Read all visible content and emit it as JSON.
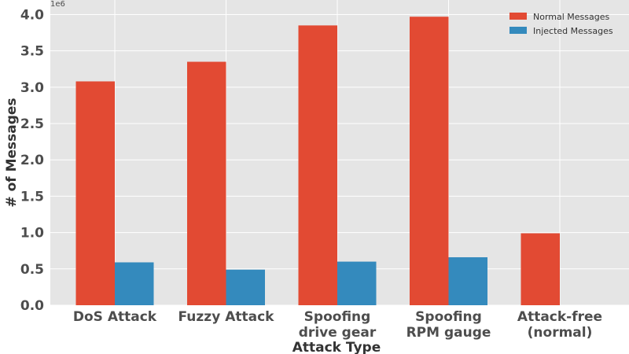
{
  "chart_data": {
    "type": "bar",
    "categories": [
      [
        "DoS Attack"
      ],
      [
        "Fuzzy Attack"
      ],
      [
        "Spoofing",
        "drive gear"
      ],
      [
        "Spoofing",
        "RPM gauge"
      ],
      [
        "Attack-free",
        "(normal)"
      ]
    ],
    "series": [
      {
        "name": "Normal Messages",
        "color": "#E24A33",
        "values": [
          3.08,
          3.35,
          3.85,
          3.97,
          0.99
        ]
      },
      {
        "name": "Injected Messages",
        "color": "#348ABD",
        "values": [
          0.59,
          0.49,
          0.6,
          0.66,
          0.0
        ]
      }
    ],
    "xlabel": "Attack Type",
    "ylabel": "# of Messages",
    "y_offset_label": "1e6",
    "ylim": [
      0,
      4.2
    ],
    "yticks": [
      "0.0",
      "0.5",
      "1.0",
      "1.5",
      "2.0",
      "2.5",
      "3.0",
      "3.5",
      "4.0"
    ],
    "grid": true,
    "legend_position": "top-right",
    "background": "#E5E5E5"
  }
}
